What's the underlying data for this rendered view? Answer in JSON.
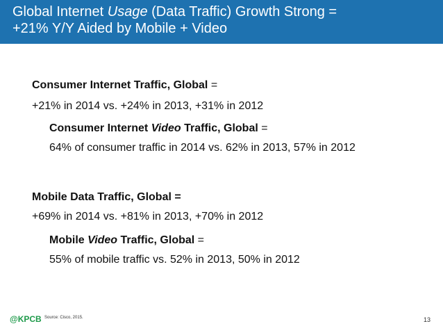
{
  "header": {
    "title_part1": "Global Internet ",
    "title_italic": "Usage",
    "title_part2": " (Data Traffic) Growth Strong =",
    "title_line2": "+21% Y/Y Aided by Mobile + Video",
    "background_color": "#1e72b0"
  },
  "sections": {
    "consumer": {
      "heading_bold": "Consumer Internet Traffic, Global",
      "heading_suffix": " =",
      "stat": "+21% in 2014 vs. +24% in 2013, +31% in 2012",
      "video_heading_bold_1": "Consumer Internet ",
      "video_heading_italic": "Video",
      "video_heading_bold_2": " Traffic, Global",
      "video_heading_suffix": " =",
      "video_stat": "64% of consumer traffic in 2014 vs. 62% in 2013, 57% in 2012"
    },
    "mobile": {
      "heading_bold": "Mobile Data Traffic, Global =",
      "stat": "+69% in 2014 vs. +81% in 2013, +70% in 2012",
      "video_heading_bold_1": "Mobile ",
      "video_heading_italic": "Video",
      "video_heading_bold_2": " Traffic, Global",
      "video_heading_suffix": " =",
      "video_stat": "55% of mobile traffic vs. 52% in 2013, 50% in 2012"
    }
  },
  "footer": {
    "logo": "@KPCB",
    "source": "Source: Cisco, 2015.",
    "page_number": "13",
    "logo_color": "#1e9a4a"
  }
}
